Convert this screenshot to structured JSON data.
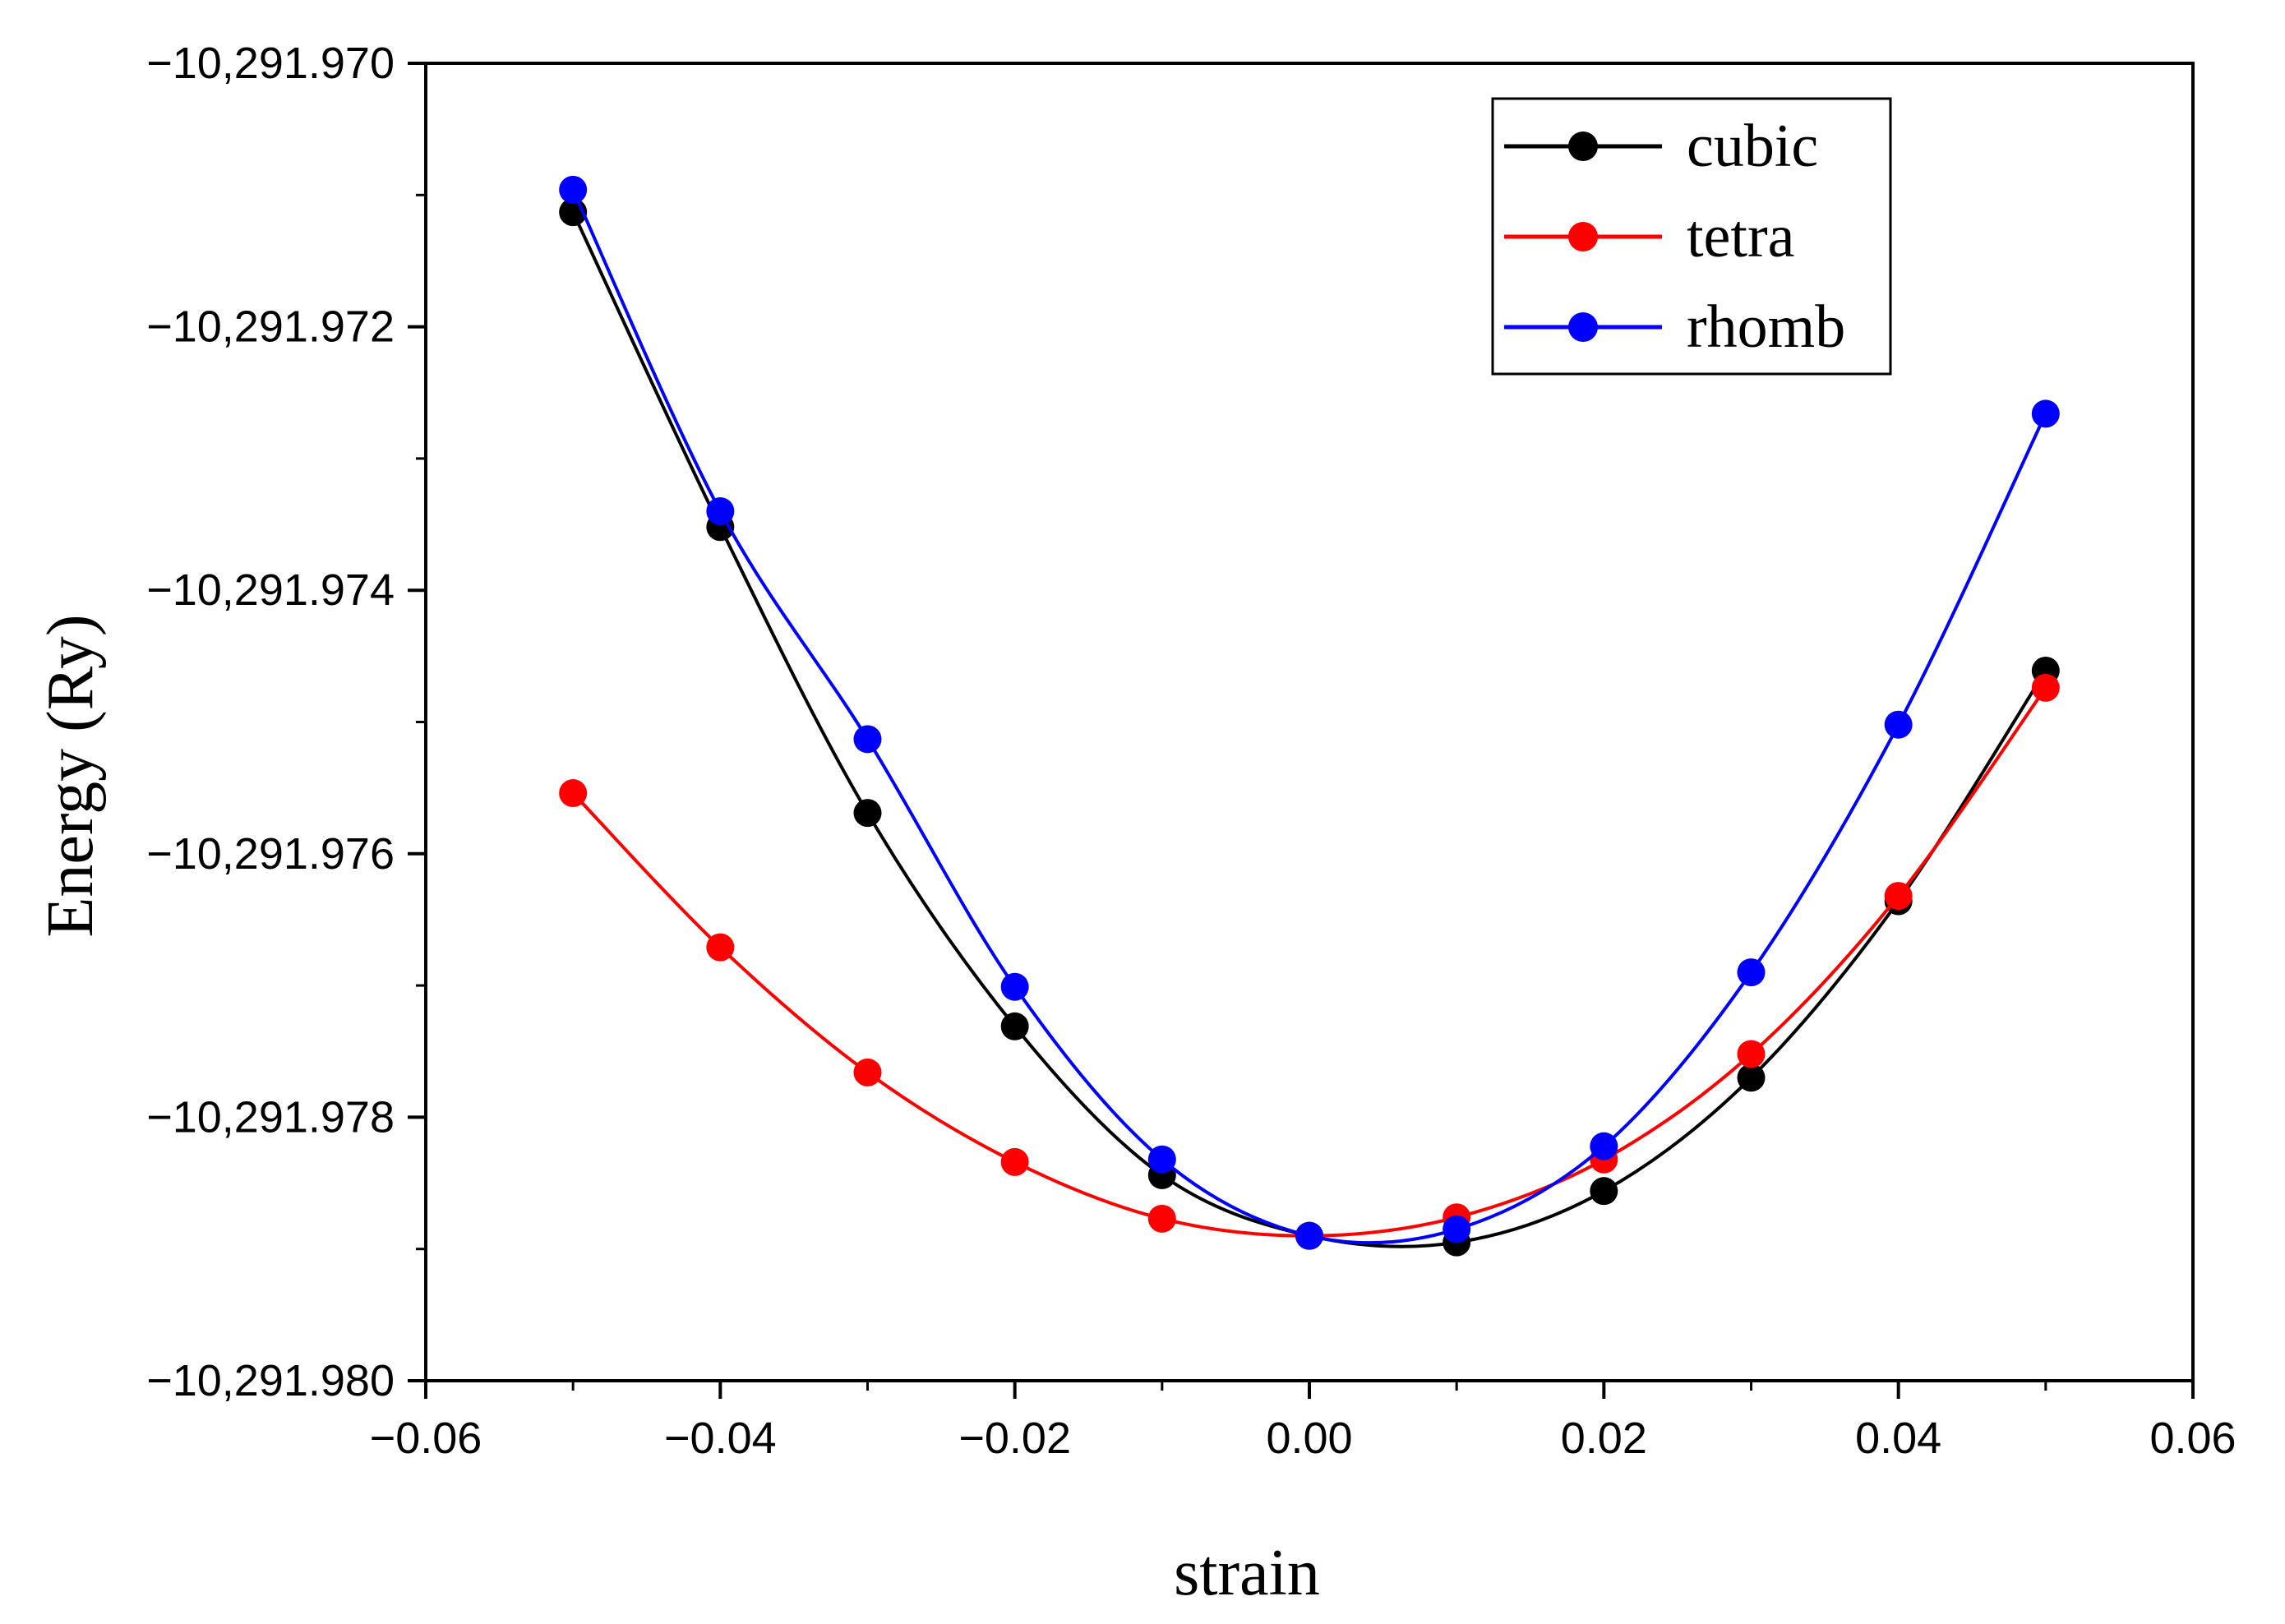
{
  "chart_data": {
    "type": "line",
    "title": "",
    "xlabel": "strain",
    "ylabel": "Energy (Ry)",
    "xlim": [
      -0.06,
      0.06
    ],
    "ylim": [
      -10291.98,
      -10291.97
    ],
    "x_major_ticks": [
      -0.06,
      -0.04,
      -0.02,
      0.0,
      0.02,
      0.04,
      0.06
    ],
    "x_tick_labels": [
      "−0.06",
      "−0.04",
      "−0.02",
      "0.00",
      "0.02",
      "0.04",
      "0.06"
    ],
    "y_major_ticks": [
      -10291.97,
      -10291.972,
      -10291.974,
      -10291.976,
      -10291.978,
      -10291.98
    ],
    "y_tick_labels": [
      "−10,291.970",
      "−10,291.972",
      "−10,291.974",
      "−10,291.976",
      "−10,291.978",
      "−10,291.980"
    ],
    "x_minor_step": 0.01,
    "y_minor_step": 0.001,
    "grid": false,
    "legend_position": "top-right",
    "x": [
      -0.05,
      -0.04,
      -0.03,
      -0.02,
      -0.01,
      0.0,
      0.01,
      0.02,
      0.03,
      0.04,
      0.05
    ],
    "series": [
      {
        "name": "cubic",
        "color": "#000000",
        "values": [
          -10291.97113,
          -10291.97352,
          -10291.97569,
          -10291.97731,
          -10291.97844,
          -10291.9789,
          -10291.97895,
          -10291.97856,
          -10291.9777,
          -10291.97636,
          -10291.97461
        ]
      },
      {
        "name": "tetra",
        "color": "#ff0000",
        "values": [
          -10291.97554,
          -10291.97671,
          -10291.97766,
          -10291.97834,
          -10291.97877,
          -10291.9789,
          -10291.97876,
          -10291.97832,
          -10291.97752,
          -10291.97632,
          -10291.97474
        ]
      },
      {
        "name": "rhomb",
        "color": "#0000ff",
        "values": [
          -10291.97096,
          -10291.9734,
          -10291.97513,
          -10291.97701,
          -10291.97832,
          -10291.9789,
          -10291.97885,
          -10291.97822,
          -10291.9769,
          -10291.97502,
          -10291.97266
        ]
      }
    ]
  }
}
